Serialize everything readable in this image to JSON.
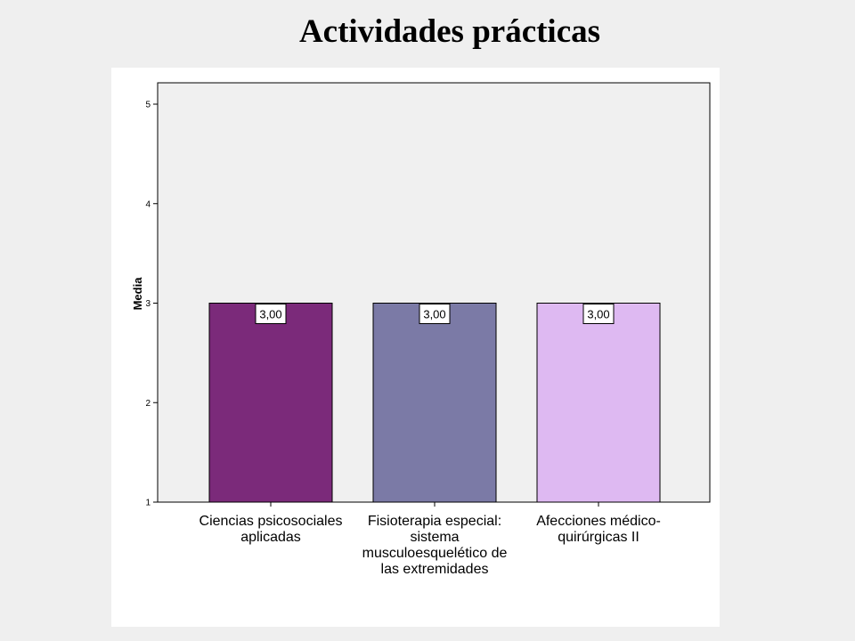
{
  "slide": {
    "title": "Actividades prácticas"
  },
  "chart_data": {
    "type": "bar",
    "title": "",
    "xlabel": "",
    "ylabel": "Media",
    "ylim": [
      1,
      5
    ],
    "yticks": [
      "1",
      "2",
      "3",
      "4",
      "5"
    ],
    "grid": false,
    "legend": "none",
    "categories": [
      "Ciencias psicosociales aplicadas",
      "Fisioterapia especial: sistema musculoesquelético de las extremidades",
      "Afecciones médico-quirúrgicas II"
    ],
    "category_label_lines": [
      [
        "Ciencias psicosociales",
        "aplicadas"
      ],
      [
        "Fisioterapia especial:",
        "sistema",
        "musculoesquelético de",
        "las extremidades"
      ],
      [
        "Afecciones médico-",
        "quirúrgicas II"
      ]
    ],
    "values": [
      3,
      3,
      3
    ],
    "value_labels": [
      "3,00",
      "3,00",
      "3,00"
    ],
    "colors": [
      "#7b2a7a",
      "#7b7aa6",
      "#deb9f2"
    ],
    "plot_background": "#f0f0f0"
  }
}
